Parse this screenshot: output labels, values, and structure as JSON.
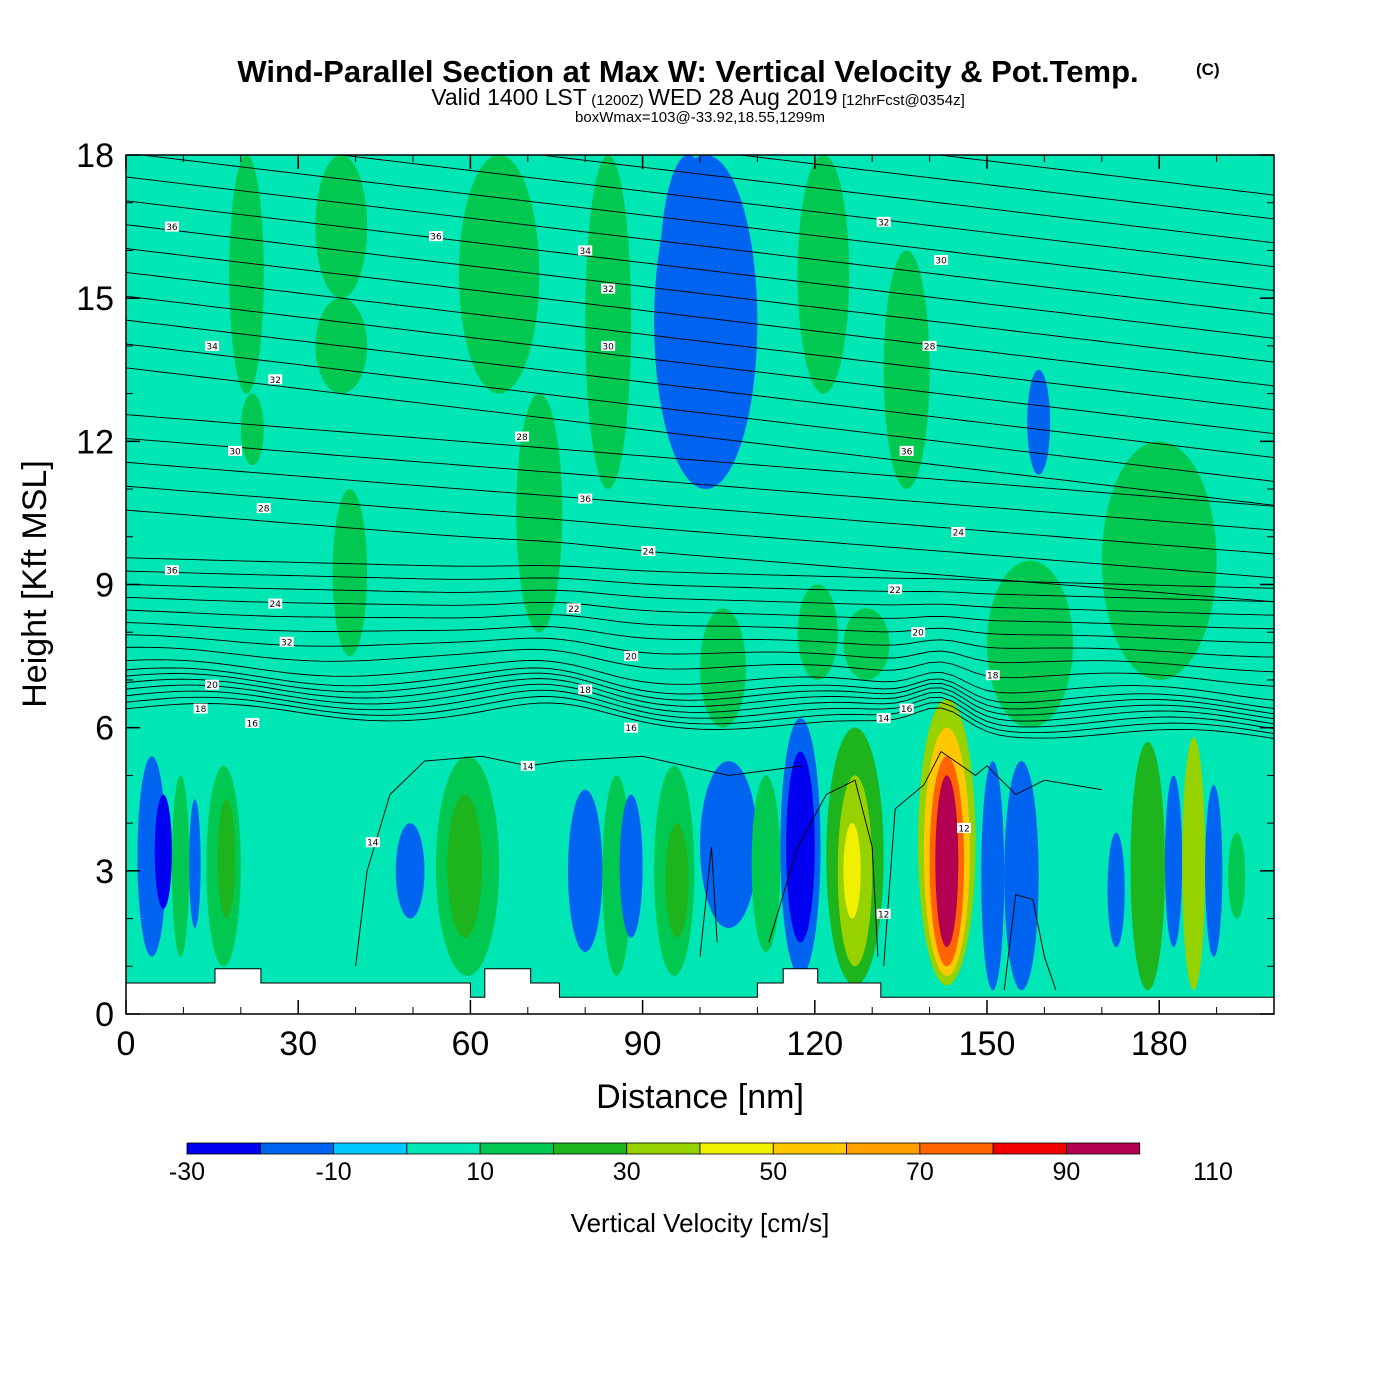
{
  "title": {
    "main": "Wind-Parallel Section at Max W: Vertical Velocity & Pot.Temp.",
    "copyright": "(C)",
    "valid_a": "Valid 1400 LST",
    "valid_b": "(1200Z)",
    "valid_c": "WED 28 Aug 2019",
    "valid_d": "[12hrFcst@0354z]",
    "box": "boxWmax=103@-33.92,18.55,1299m"
  },
  "colors": {
    "background_field": "#00d2ff",
    "contour": "#000000",
    "terrain": "#ffffff",
    "scale": [
      "#0000f0",
      "#0064f0",
      "#00c8ff",
      "#00e6b4",
      "#00c850",
      "#1eb41e",
      "#96d200",
      "#f0f000",
      "#ffc800",
      "#ffa000",
      "#ff6400",
      "#f00000",
      "#b40050"
    ]
  },
  "chart_data": {
    "type": "heatmap",
    "xlabel": "Distance [nm]",
    "ylabel": "Height [Kft MSL]",
    "xlim": [
      0,
      200
    ],
    "ylim": [
      0,
      18
    ],
    "xticks": [
      0,
      30,
      60,
      90,
      120,
      150,
      180
    ],
    "yticks": [
      0,
      3,
      6,
      9,
      12,
      15,
      18
    ],
    "field": "Vertical Velocity",
    "colorbar": {
      "title": "Vertical Velocity [cm/s]",
      "bounds": [
        -30,
        -20,
        -10,
        0,
        10,
        20,
        30,
        40,
        50,
        60,
        70,
        80,
        90,
        100,
        110
      ],
      "tick_labels": [
        -30,
        -10,
        10,
        30,
        50,
        70,
        90,
        110
      ],
      "colors": [
        "#0000f0",
        "#0064f0",
        "#00c8ff",
        "#00e6b4",
        "#00c850",
        "#1eb41e",
        "#96d200",
        "#f0f000",
        "#ffc800",
        "#ffa000",
        "#ff6400",
        "#f00000",
        "#b40050"
      ]
    },
    "background_value_range": [
      0,
      10
    ],
    "cells": [
      {
        "x": [
          18,
          24
        ],
        "y": [
          13,
          18
        ],
        "range": [
          10,
          20
        ]
      },
      {
        "x": [
          20,
          24
        ],
        "y": [
          11.5,
          13
        ],
        "range": [
          10,
          20
        ]
      },
      {
        "x": [
          33,
          42
        ],
        "y": [
          15,
          18
        ],
        "range": [
          10,
          20
        ]
      },
      {
        "x": [
          33,
          42
        ],
        "y": [
          13,
          15
        ],
        "range": [
          10,
          20
        ]
      },
      {
        "x": [
          58,
          72
        ],
        "y": [
          13,
          18
        ],
        "range": [
          10,
          20
        ]
      },
      {
        "x": [
          68,
          76
        ],
        "y": [
          8,
          13
        ],
        "range": [
          10,
          20
        ]
      },
      {
        "x": [
          80,
          88
        ],
        "y": [
          11,
          18
        ],
        "range": [
          10,
          20
        ]
      },
      {
        "x": [
          36,
          42
        ],
        "y": [
          7.5,
          11
        ],
        "range": [
          10,
          20
        ]
      },
      {
        "x": [
          92,
          110
        ],
        "y": [
          11,
          18
        ],
        "range": [
          -20,
          -10
        ]
      },
      {
        "x": [
          93,
          103
        ],
        "y": [
          13,
          18
        ],
        "range": [
          -20,
          -10
        ]
      },
      {
        "x": [
          117,
          126
        ],
        "y": [
          13,
          18
        ],
        "range": [
          10,
          20
        ]
      },
      {
        "x": [
          132,
          140
        ],
        "y": [
          11,
          16
        ],
        "range": [
          10,
          20
        ]
      },
      {
        "x": [
          157,
          161
        ],
        "y": [
          11.3,
          13.5
        ],
        "range": [
          -20,
          -10
        ]
      },
      {
        "x": [
          170,
          190
        ],
        "y": [
          7,
          12
        ],
        "range": [
          10,
          20
        ]
      },
      {
        "x": [
          100,
          108
        ],
        "y": [
          6,
          8.5
        ],
        "range": [
          10,
          20
        ]
      },
      {
        "x": [
          117,
          124
        ],
        "y": [
          7,
          9
        ],
        "range": [
          10,
          20
        ]
      },
      {
        "x": [
          125,
          133
        ],
        "y": [
          7,
          8.5
        ],
        "range": [
          10,
          20
        ]
      },
      {
        "x": [
          150,
          165
        ],
        "y": [
          6,
          9.5
        ],
        "range": [
          10,
          20
        ]
      },
      {
        "x": [
          2,
          7
        ],
        "y": [
          1.2,
          5.4
        ],
        "range": [
          -20,
          -10
        ]
      },
      {
        "x": [
          5,
          8
        ],
        "y": [
          2.2,
          4.6
        ],
        "range": [
          -30,
          -20
        ]
      },
      {
        "x": [
          8,
          11
        ],
        "y": [
          1.2,
          5
        ],
        "range": [
          10,
          20
        ]
      },
      {
        "x": [
          11,
          13
        ],
        "y": [
          1.8,
          4.5
        ],
        "range": [
          -20,
          -10
        ]
      },
      {
        "x": [
          14,
          20
        ],
        "y": [
          1,
          5.2
        ],
        "range": [
          10,
          20
        ]
      },
      {
        "x": [
          16,
          19
        ],
        "y": [
          2,
          4.5
        ],
        "range": [
          20,
          30
        ]
      },
      {
        "x": [
          21,
          30
        ],
        "y": [
          0.8,
          4.2
        ],
        "range": [
          0,
          10
        ]
      },
      {
        "x": [
          35,
          63
        ],
        "y": [
          0.8,
          4.5
        ],
        "range": [
          0,
          10
        ]
      },
      {
        "x": [
          47,
          52
        ],
        "y": [
          2,
          4
        ],
        "range": [
          -20,
          -10
        ]
      },
      {
        "x": [
          54,
          65
        ],
        "y": [
          0.8,
          5.4
        ],
        "range": [
          10,
          20
        ]
      },
      {
        "x": [
          56,
          62
        ],
        "y": [
          1.6,
          4.6
        ],
        "range": [
          20,
          30
        ]
      },
      {
        "x": [
          68,
          73
        ],
        "y": [
          0.5,
          4
        ],
        "range": [
          0,
          10
        ]
      },
      {
        "x": [
          74,
          81
        ],
        "y": [
          0.6,
          4.3
        ],
        "range": [
          0,
          10
        ]
      },
      {
        "x": [
          77,
          83
        ],
        "y": [
          1.3,
          4.7
        ],
        "range": [
          -20,
          -10
        ]
      },
      {
        "x": [
          83,
          88
        ],
        "y": [
          0.8,
          5
        ],
        "range": [
          10,
          20
        ]
      },
      {
        "x": [
          86,
          90
        ],
        "y": [
          1.6,
          4.6
        ],
        "range": [
          -20,
          -10
        ]
      },
      {
        "x": [
          92,
          99
        ],
        "y": [
          0.8,
          5.2
        ],
        "range": [
          10,
          20
        ]
      },
      {
        "x": [
          94,
          98
        ],
        "y": [
          1.6,
          4
        ],
        "range": [
          20,
          30
        ]
      },
      {
        "x": [
          100,
          110
        ],
        "y": [
          1.8,
          5.3
        ],
        "range": [
          -20,
          -10
        ]
      },
      {
        "x": [
          109,
          114
        ],
        "y": [
          1.3,
          5
        ],
        "range": [
          10,
          20
        ]
      },
      {
        "x": [
          114,
          121
        ],
        "y": [
          0.8,
          6.2
        ],
        "range": [
          -20,
          -10
        ]
      },
      {
        "x": [
          115,
          120
        ],
        "y": [
          1.5,
          5.5
        ],
        "range": [
          -30,
          -20
        ]
      },
      {
        "x": [
          122,
          132
        ],
        "y": [
          0.6,
          6
        ],
        "range": [
          20,
          30
        ]
      },
      {
        "x": [
          124,
          130
        ],
        "y": [
          1,
          5
        ],
        "range": [
          30,
          40
        ]
      },
      {
        "x": [
          125,
          128
        ],
        "y": [
          2,
          4
        ],
        "range": [
          40,
          50
        ]
      },
      {
        "x": [
          138,
          148
        ],
        "y": [
          0.6,
          6.6
        ],
        "range": [
          30,
          40
        ]
      },
      {
        "x": [
          139,
          147
        ],
        "y": [
          0.8,
          6
        ],
        "range": [
          50,
          60
        ]
      },
      {
        "x": [
          140,
          146
        ],
        "y": [
          1,
          5.4
        ],
        "range": [
          70,
          80
        ]
      },
      {
        "x": [
          141,
          145
        ],
        "y": [
          1.4,
          5
        ],
        "range": [
          90,
          100
        ]
      },
      {
        "x": [
          142,
          144
        ],
        "y": [
          2,
          4.2
        ],
        "range": [
          100,
          110
        ]
      },
      {
        "x": [
          149,
          153
        ],
        "y": [
          0.5,
          5.3
        ],
        "range": [
          -20,
          -10
        ]
      },
      {
        "x": [
          153,
          159
        ],
        "y": [
          0.5,
          5.3
        ],
        "range": [
          -20,
          -10
        ]
      },
      {
        "x": [
          160,
          168
        ],
        "y": [
          0.6,
          4
        ],
        "range": [
          0,
          10
        ]
      },
      {
        "x": [
          171,
          174
        ],
        "y": [
          1.4,
          3.8
        ],
        "range": [
          -20,
          -10
        ]
      },
      {
        "x": [
          175,
          181
        ],
        "y": [
          0.5,
          5.7
        ],
        "range": [
          20,
          30
        ]
      },
      {
        "x": [
          181,
          184
        ],
        "y": [
          1.4,
          5
        ],
        "range": [
          -20,
          -10
        ]
      },
      {
        "x": [
          184,
          188
        ],
        "y": [
          0.5,
          5.8
        ],
        "range": [
          30,
          40
        ]
      },
      {
        "x": [
          188,
          191
        ],
        "y": [
          1.2,
          4.8
        ],
        "range": [
          -20,
          -10
        ]
      },
      {
        "x": [
          192,
          195
        ],
        "y": [
          2,
          3.8
        ],
        "range": [
          10,
          20
        ]
      }
    ],
    "contour_levels": [
      12,
      14,
      16,
      18,
      20,
      22,
      24,
      26,
      28,
      30,
      32,
      34,
      36
    ],
    "contour_labels": [
      {
        "text": "36",
        "x": 8,
        "y": 16.5
      },
      {
        "text": "36",
        "x": 54,
        "y": 16.3
      },
      {
        "text": "34",
        "x": 80,
        "y": 16
      },
      {
        "text": "32",
        "x": 84,
        "y": 15.2
      },
      {
        "text": "30",
        "x": 84,
        "y": 14
      },
      {
        "text": "34",
        "x": 15,
        "y": 14
      },
      {
        "text": "32",
        "x": 26,
        "y": 13.3
      },
      {
        "text": "30",
        "x": 19,
        "y": 11.8
      },
      {
        "text": "28",
        "x": 69,
        "y": 12.1
      },
      {
        "text": "28",
        "x": 24,
        "y": 10.6
      },
      {
        "text": "36",
        "x": 80,
        "y": 10.8
      },
      {
        "text": "24",
        "x": 91,
        "y": 9.7
      },
      {
        "text": "36",
        "x": 8,
        "y": 9.3
      },
      {
        "text": "24",
        "x": 26,
        "y": 8.6
      },
      {
        "text": "22",
        "x": 78,
        "y": 8.5
      },
      {
        "text": "32",
        "x": 28,
        "y": 7.8
      },
      {
        "text": "20",
        "x": 88,
        "y": 7.5
      },
      {
        "text": "20",
        "x": 15,
        "y": 6.9
      },
      {
        "text": "18",
        "x": 80,
        "y": 6.8
      },
      {
        "text": "18",
        "x": 13,
        "y": 6.4
      },
      {
        "text": "16",
        "x": 22,
        "y": 6.1
      },
      {
        "text": "16",
        "x": 88,
        "y": 6
      },
      {
        "text": "14",
        "x": 70,
        "y": 5.2
      },
      {
        "text": "14",
        "x": 43,
        "y": 3.6
      },
      {
        "text": "32",
        "x": 132,
        "y": 16.6
      },
      {
        "text": "30",
        "x": 142,
        "y": 15.8
      },
      {
        "text": "28",
        "x": 140,
        "y": 14
      },
      {
        "text": "36",
        "x": 136,
        "y": 11.8
      },
      {
        "text": "24",
        "x": 145,
        "y": 10.1
      },
      {
        "text": "22",
        "x": 134,
        "y": 8.9
      },
      {
        "text": "20",
        "x": 138,
        "y": 8
      },
      {
        "text": "18",
        "x": 151,
        "y": 7.1
      },
      {
        "text": "16",
        "x": 136,
        "y": 6.4
      },
      {
        "text": "14",
        "x": 132,
        "y": 6.2
      },
      {
        "text": "12",
        "x": 146,
        "y": 3.9
      },
      {
        "text": "12",
        "x": 132,
        "y": 2.1
      }
    ],
    "terrain_kft": [
      [
        0,
        0.65
      ],
      [
        15.5,
        0.65
      ],
      [
        15.5,
        0.95
      ],
      [
        23.5,
        0.95
      ],
      [
        23.5,
        0.65
      ],
      [
        60,
        0.65
      ],
      [
        60,
        0.35
      ],
      [
        62.5,
        0.35
      ],
      [
        62.5,
        0.95
      ],
      [
        70.5,
        0.95
      ],
      [
        70.5,
        0.65
      ],
      [
        75.5,
        0.65
      ],
      [
        75.5,
        0.35
      ],
      [
        110,
        0.35
      ],
      [
        110,
        0.65
      ],
      [
        114.5,
        0.65
      ],
      [
        114.5,
        0.95
      ],
      [
        120.5,
        0.95
      ],
      [
        120.5,
        0.65
      ],
      [
        131.5,
        0.65
      ],
      [
        131.5,
        0.35
      ],
      [
        200,
        0.35
      ]
    ]
  }
}
